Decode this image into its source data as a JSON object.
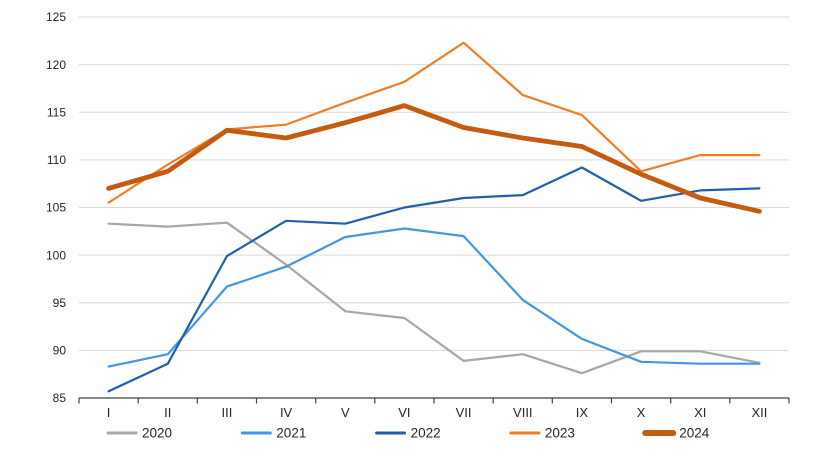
{
  "chart_data": {
    "type": "line",
    "title": "",
    "xlabel": "",
    "ylabel": "",
    "categories": [
      "I",
      "II",
      "III",
      "IV",
      "V",
      "VI",
      "VII",
      "VIII",
      "IX",
      "X",
      "XI",
      "XII"
    ],
    "series": [
      {
        "name": "2020",
        "color": "#A6A6A6",
        "thick": false,
        "values": [
          103.3,
          103.0,
          103.4,
          99.0,
          94.1,
          93.4,
          88.9,
          89.6,
          87.6,
          89.9,
          89.9,
          88.7
        ]
      },
      {
        "name": "2021",
        "color": "#4297E2",
        "thick": false,
        "values": [
          88.3,
          89.6,
          96.7,
          98.8,
          101.9,
          102.8,
          102.0,
          95.3,
          91.2,
          88.8,
          88.6,
          88.6
        ]
      },
      {
        "name": "2022",
        "color": "#1F5FAB",
        "thick": false,
        "values": [
          85.7,
          88.6,
          99.9,
          103.6,
          103.3,
          105.0,
          106.0,
          106.3,
          109.2,
          105.7,
          106.8,
          107.0
        ]
      },
      {
        "name": "2023",
        "color": "#F07E26",
        "thick": false,
        "values": [
          105.5,
          109.5,
          113.2,
          113.7,
          116.0,
          118.2,
          122.3,
          116.8,
          114.7,
          108.8,
          110.5,
          110.5
        ]
      },
      {
        "name": "2024",
        "color": "#C55A11",
        "thick": true,
        "values": [
          107.0,
          108.8,
          113.1,
          112.3,
          113.9,
          115.7,
          113.4,
          112.3,
          111.4,
          108.5,
          106.0,
          104.6
        ]
      }
    ],
    "ylim": [
      85,
      125
    ],
    "yticks": [
      85,
      90,
      95,
      100,
      105,
      110,
      115,
      120,
      125
    ],
    "grid": "horizontal",
    "legend_position": "bottom",
    "legend": [
      "2020",
      "2021",
      "2022",
      "2023",
      "2024"
    ]
  },
  "style": {
    "background": "#FFFFFF",
    "grid_color": "#D9D9D9",
    "axis_color": "#404040",
    "label_color": "#262626",
    "thin_line_width": 2.2,
    "thick_line_width": 4.8
  }
}
